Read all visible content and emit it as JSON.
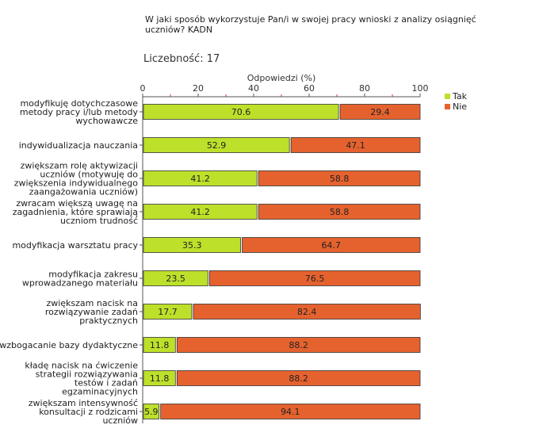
{
  "chart_data": {
    "type": "bar",
    "orientation": "horizontal",
    "stacked": true,
    "title": "W jaki sposób wykorzystuje Pan/i w swojej pracy wnioski z analizy osiągnięć uczniów? KADN",
    "count_label": "Liczebność: 17",
    "xlabel": "Odpowiedzi (%)",
    "xlim": [
      0,
      100
    ],
    "xticks": [
      0,
      20,
      40,
      60,
      80,
      100
    ],
    "legend_position": "top-right",
    "categories": [
      [
        "modyfikuję dotychczasowe",
        "metody pracy i/lub metody",
        "wychowawcze"
      ],
      [
        "indywidualizacja nauczania"
      ],
      [
        "zwiększam rolę aktywizacji",
        "uczniów (motywuję do",
        "zwiększenia indywidualnego",
        "zaangażowania uczniów)"
      ],
      [
        "zwracam większą uwagę na",
        "zagadnienia, które sprawiają",
        "uczniom trudność"
      ],
      [
        "modyfikacja warsztatu pracy"
      ],
      [
        "modyfikacja zakresu",
        "wprowadzanego materiału"
      ],
      [
        "zwiększam nacisk na",
        "rozwiązywanie zadań",
        "praktycznych"
      ],
      [
        "wzbogacanie bazy dydaktyczne"
      ],
      [
        "kładę nacisk na ćwiczenie",
        "strategii rozwiązywania",
        "testów i zadań",
        "egzaminacyjnych"
      ],
      [
        "zwiększam intensywność",
        "konsultacji z rodzicami",
        "uczniów"
      ]
    ],
    "series": [
      {
        "name": "Tak",
        "color": "#bde02a",
        "values": [
          70.6,
          52.9,
          41.2,
          41.2,
          35.3,
          23.5,
          17.7,
          11.8,
          11.8,
          5.9
        ]
      },
      {
        "name": "Nie",
        "color": "#e5622e",
        "values": [
          29.4,
          47.1,
          58.8,
          58.8,
          64.7,
          76.5,
          82.4,
          88.2,
          88.2,
          94.1
        ]
      }
    ]
  }
}
